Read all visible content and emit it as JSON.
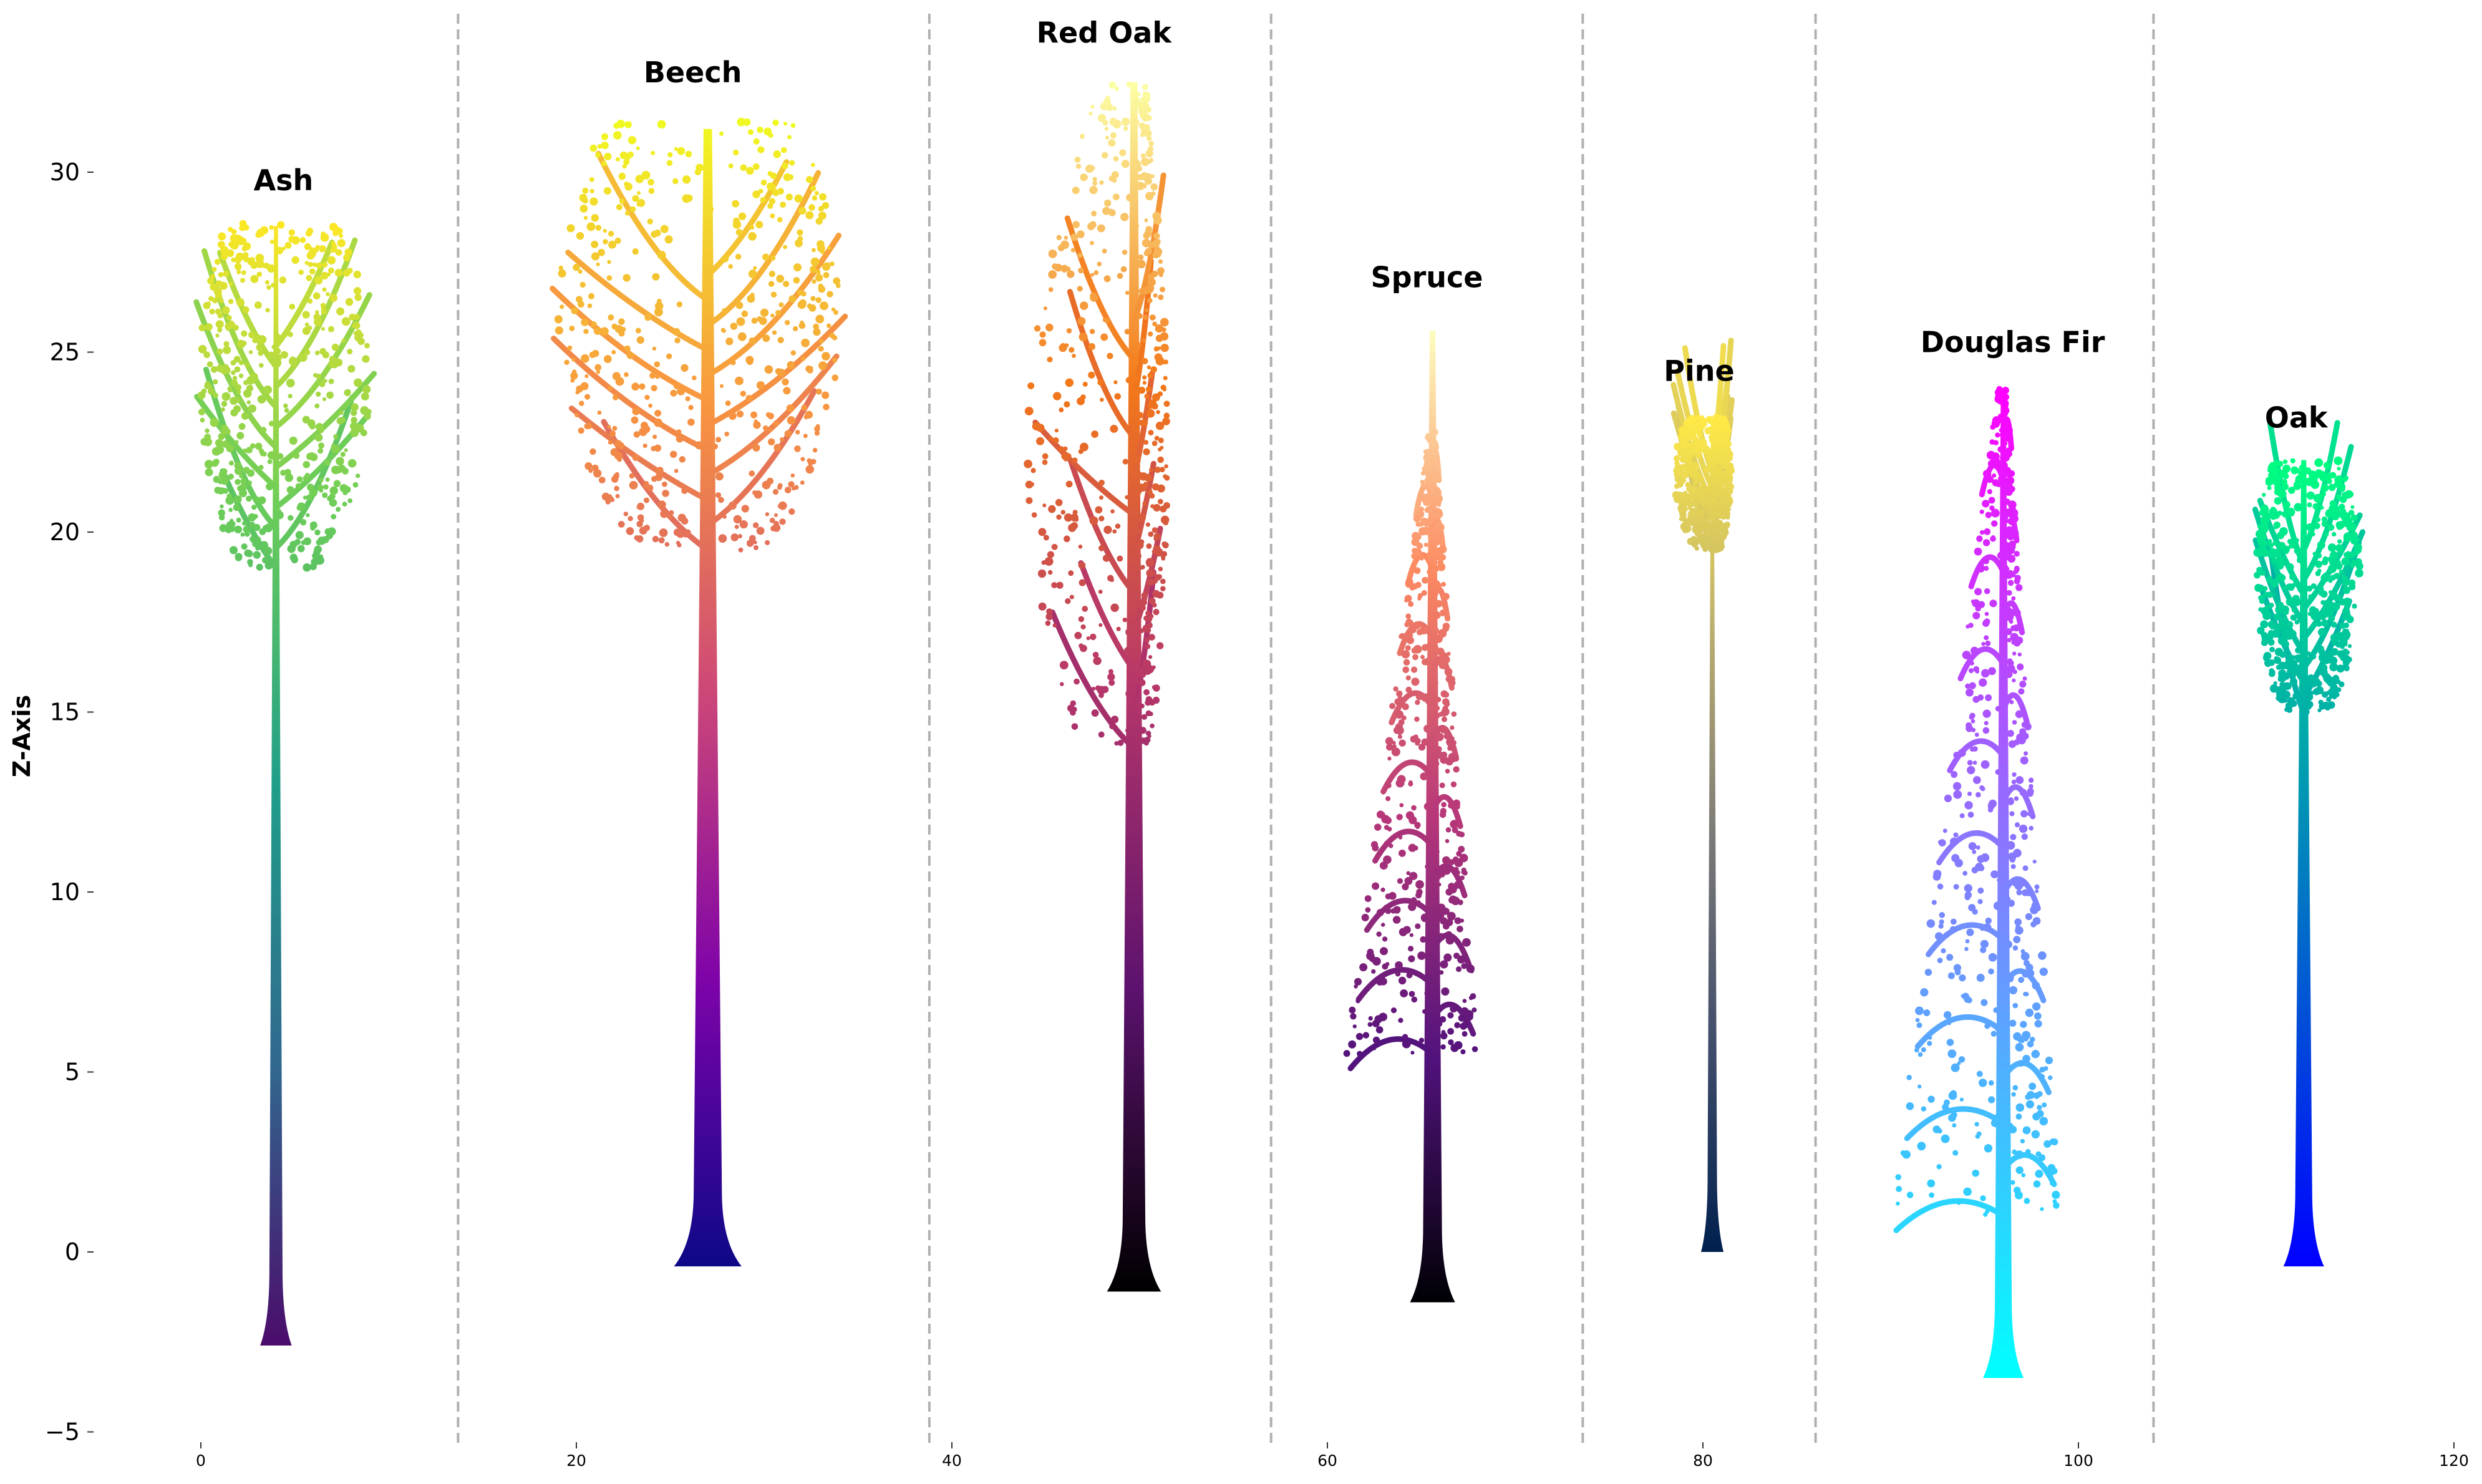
{
  "chart_data": {
    "type": "scatter",
    "title": "",
    "xlabel": "",
    "ylabel": "Z-Axis",
    "xlim": [
      -5,
      120
    ],
    "ylim": [
      -5,
      34
    ],
    "grid": false,
    "x_ticks": [
      0,
      20,
      40,
      60,
      80,
      100,
      120
    ],
    "y_ticks": [
      -5,
      0,
      5,
      10,
      15,
      20,
      25,
      30
    ],
    "separators_x": [
      13.7,
      38.8,
      57,
      73.6,
      86,
      104
    ],
    "series": [
      {
        "name": "Ash",
        "label_x": 4.4,
        "label_z": 29.5,
        "trunk": {
          "x": 4.0,
          "base": -2.6,
          "top": 28.5,
          "width": 0.7
        },
        "crown": {
          "xmin": -0.1,
          "xmax": 9.0,
          "zmin": 19.0,
          "zmax": 28.6,
          "shape": "round"
        },
        "colors": [
          "#4b0c6b",
          "#31688e",
          "#1f9e89",
          "#6ece58",
          "#fde725"
        ]
      },
      {
        "name": "Beech",
        "label_x": 26.2,
        "label_z": 32.5,
        "trunk": {
          "x": 27.0,
          "base": -0.4,
          "top": 31.2,
          "width": 1.5
        },
        "crown": {
          "xmin": 19.0,
          "xmax": 34.0,
          "zmin": 19.5,
          "zmax": 31.4,
          "shape": "round"
        },
        "colors": [
          "#0d0887",
          "#7e03a8",
          "#cc4778",
          "#f89540",
          "#f0f921"
        ]
      },
      {
        "name": "Red Oak",
        "label_x": 48.1,
        "label_z": 33.6,
        "trunk": {
          "x": 49.7,
          "base": -1.1,
          "top": 32.5,
          "width": 1.2
        },
        "crown": {
          "xmin": 44.0,
          "xmax": 51.5,
          "zmin": 14.0,
          "zmax": 32.5,
          "shape": "narrow"
        },
        "colors": [
          "#000000",
          "#5c126e",
          "#b6366a",
          "#f37819",
          "#fcffa4"
        ]
      },
      {
        "name": "Spruce",
        "label_x": 65.3,
        "label_z": 26.8,
        "trunk": {
          "x": 65.6,
          "base": -1.4,
          "top": 25.6,
          "width": 1.0
        },
        "crown": {
          "xmin": 61.0,
          "xmax": 68.0,
          "zmin": 5.5,
          "zmax": 22.8,
          "shape": "conic"
        },
        "colors": [
          "#000004",
          "#51127c",
          "#b73779",
          "#fc8961",
          "#fcfdbf"
        ]
      },
      {
        "name": "Pine",
        "label_x": 79.8,
        "label_z": 24.2,
        "trunk": {
          "x": 80.5,
          "base": 0.0,
          "top": 23.2,
          "width": 0.5
        },
        "crown": {
          "xmin": 78.5,
          "xmax": 81.5,
          "zmin": 19.5,
          "zmax": 23.2,
          "shape": "round"
        },
        "colors": [
          "#00204d",
          "#414d6b",
          "#7c7b78",
          "#bcaf6f",
          "#ffea46"
        ]
      },
      {
        "name": "Douglas Fir",
        "label_x": 96.5,
        "label_z": 25.0,
        "trunk": {
          "x": 96.0,
          "base": -3.5,
          "top": 24.0,
          "width": 0.9
        },
        "crown": {
          "xmin": 90.0,
          "xmax": 99.0,
          "zmin": 1.0,
          "zmax": 24.0,
          "shape": "conic"
        },
        "colors": [
          "#00ffff",
          "#40bfff",
          "#8080ff",
          "#bf40ff",
          "#ff00ff"
        ]
      },
      {
        "name": "Oak",
        "label_x": 111.6,
        "label_z": 22.9,
        "trunk": {
          "x": 112.0,
          "base": -0.4,
          "top": 22.0,
          "width": 0.9
        },
        "crown": {
          "xmin": 109.5,
          "xmax": 115.0,
          "zmin": 15.0,
          "zmax": 22.0,
          "shape": "round"
        },
        "colors": [
          "#0000ff",
          "#0080bf",
          "#00ff80"
        ]
      }
    ]
  }
}
